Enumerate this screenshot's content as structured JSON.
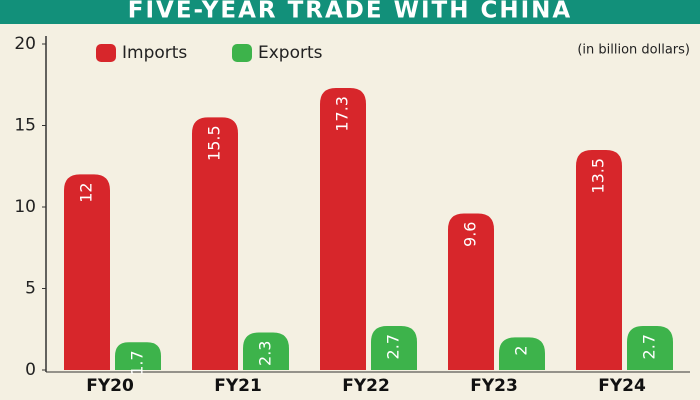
{
  "chart_data": {
    "type": "bar",
    "title": "FIVE-YEAR TRADE WITH CHINA",
    "subtitle": "(in billion dollars)",
    "categories": [
      "FY20",
      "FY21",
      "FY22",
      "FY23",
      "FY24"
    ],
    "series": [
      {
        "name": "Imports",
        "color": "#d7262b",
        "values": [
          12,
          15.5,
          17.3,
          9.6,
          13.5
        ]
      },
      {
        "name": "Exports",
        "color": "#3db34b",
        "values": [
          1.7,
          2.3,
          2.7,
          2,
          2.7
        ]
      }
    ],
    "ylim": [
      0,
      20
    ],
    "yticks": [
      0,
      5,
      10,
      15,
      20
    ],
    "legend": "top-left"
  }
}
